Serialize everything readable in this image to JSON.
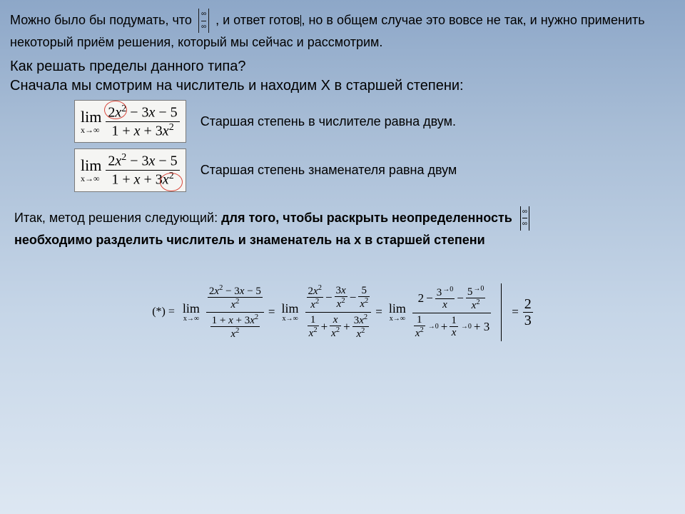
{
  "background": {
    "gradient_top": "#8da7c8",
    "gradient_bottom": "#dde7f2"
  },
  "intro": {
    "part1": "Можно было бы подумать, что",
    "indet": {
      "top": "∞",
      "bot": "∞"
    },
    "part2": ", и ответ готов",
    "indet2": {
      "top": "∞",
      "bot": "∞"
    },
    "part3": ", но в общем случае это вовсе не так, и нужно применить некоторый приём решения, который мы сейчас и рассмотрим."
  },
  "question": "Как решать пределы данного типа?",
  "step1": "Сначала мы смотрим на числитель и находим  X   в старшей степени:",
  "fig1": {
    "lim": "lim",
    "sub": "x→∞",
    "num": "2x² − 3x − 5",
    "den": "1 + x + 3x²",
    "circle": "numerator_x2",
    "caption": "Старшая степень в числителе равна двум."
  },
  "fig2": {
    "lim": "lim",
    "sub": "x→∞",
    "num": "2x² − 3x − 5",
    "den": "1 + x + 3x²",
    "circle": "denominator_x2",
    "caption": "Старшая степень знаменателя равна двум"
  },
  "method": {
    "lead": "Итак, метод решения следующий: ",
    "bold": "для того, чтобы раскрыть неопределенность",
    "indet": {
      "top": "∞",
      "bot": "∞"
    },
    "tail": "необходимо разделить числитель и знаменатель на  x  в старшей степени"
  },
  "derivation": {
    "star": "(*) =",
    "lim": "lim",
    "sub": "x→∞",
    "stage1": {
      "num_top": "2x² − 3x − 5",
      "num_bot": "x²",
      "den_top": "1 + x + 3x²",
      "den_bot": "x²"
    },
    "eq": "=",
    "stage2": {
      "num_terms": [
        {
          "n": "2x²",
          "d": "x²"
        },
        {
          "op": "−",
          "n": "3x",
          "d": "x²"
        },
        {
          "op": "−",
          "n": "5",
          "d": "x²"
        }
      ],
      "den_terms": [
        {
          "n": "1",
          "d": "x²"
        },
        {
          "op": "+",
          "n": "x",
          "d": "x²"
        },
        {
          "op": "+",
          "n": "3x²",
          "d": "x²"
        }
      ]
    },
    "stage3": {
      "num": [
        {
          "text": "2"
        },
        {
          "op": "−",
          "n": "3",
          "d": "x",
          "to0": true
        },
        {
          "op": "−",
          "n": "5",
          "d": "x²",
          "to0": true
        }
      ],
      "den": [
        {
          "n": "1",
          "d": "x²",
          "to0": true
        },
        {
          "op": "+",
          "n": "1",
          "d": "x",
          "to0": true
        },
        {
          "op": "+",
          "text": "3"
        }
      ]
    },
    "result": {
      "n": "2",
      "d": "3"
    }
  },
  "colors": {
    "text": "#000000",
    "circle": "#d8453a",
    "figbg": "#f5f5f3",
    "figborder": "#7a7a7a"
  },
  "fonts": {
    "body": "Arial",
    "math": "Times New Roman",
    "body_size_pt": 14,
    "math_size_pt": 15
  }
}
